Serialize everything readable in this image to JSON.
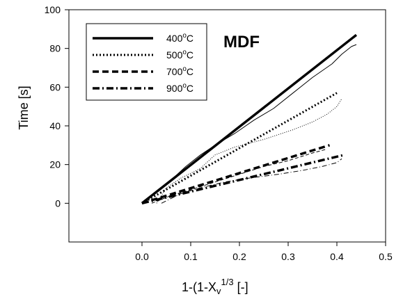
{
  "chart_data": {
    "type": "line",
    "annotation": "MDF",
    "xlabel": "1-(1-X",
    "xlabel_sub": "v",
    "xlabel_sup": "1/3",
    "xlabel_tail": " [-]",
    "ylabel": "Time [s]",
    "xlim": [
      -0.15,
      0.5
    ],
    "ylim": [
      -20,
      100
    ],
    "xticks": [
      0.0,
      0.1,
      0.2,
      0.3,
      0.4,
      0.5
    ],
    "xtick_labels": [
      "0.0",
      "0.1",
      "0.2",
      "0.3",
      "0.4",
      "0.5"
    ],
    "yticks": [
      0,
      20,
      40,
      60,
      80,
      100
    ],
    "ytick_labels": [
      "0",
      "20",
      "40",
      "60",
      "80",
      "100"
    ],
    "grid": false,
    "legend_position": "top-left",
    "series": [
      {
        "name": "400°C",
        "name_num": "400",
        "name_sup": "o",
        "name_unit": "C",
        "style": "solid",
        "fit": [
          [
            0.0,
            0.0
          ],
          [
            0.44,
            87
          ]
        ],
        "measured": [
          [
            0.0,
            0.0
          ],
          [
            0.03,
            6
          ],
          [
            0.06,
            12
          ],
          [
            0.09,
            19
          ],
          [
            0.12,
            25
          ],
          [
            0.15,
            30
          ],
          [
            0.19,
            36
          ],
          [
            0.23,
            43
          ],
          [
            0.27,
            49
          ],
          [
            0.31,
            57
          ],
          [
            0.35,
            65
          ],
          [
            0.39,
            72
          ],
          [
            0.41,
            77
          ],
          [
            0.43,
            81
          ],
          [
            0.44,
            82
          ]
        ]
      },
      {
        "name": "500°C",
        "name_num": "500",
        "name_sup": "o",
        "name_unit": "C",
        "style": "dotted",
        "fit": [
          [
            0.0,
            0.0
          ],
          [
            0.4,
            57
          ]
        ],
        "measured": [
          [
            0.03,
            0.0
          ],
          [
            0.05,
            8
          ],
          [
            0.08,
            13
          ],
          [
            0.12,
            18
          ],
          [
            0.15,
            25
          ],
          [
            0.19,
            29
          ],
          [
            0.25,
            33
          ],
          [
            0.31,
            38
          ],
          [
            0.35,
            42
          ],
          [
            0.38,
            46
          ],
          [
            0.4,
            50
          ],
          [
            0.41,
            54
          ]
        ]
      },
      {
        "name": "700°C",
        "name_num": "700",
        "name_sup": "o",
        "name_unit": "C",
        "style": "dashed",
        "fit": [
          [
            0.0,
            0.0
          ],
          [
            0.385,
            30
          ]
        ],
        "measured": [
          [
            0.02,
            0.0
          ],
          [
            0.06,
            4
          ],
          [
            0.1,
            7
          ],
          [
            0.15,
            11
          ],
          [
            0.2,
            15
          ],
          [
            0.25,
            19
          ],
          [
            0.3,
            22
          ],
          [
            0.35,
            26
          ],
          [
            0.38,
            28
          ]
        ]
      },
      {
        "name": "900°C",
        "name_num": "900",
        "name_sup": "o",
        "name_unit": "C",
        "style": "dashdot",
        "fit": [
          [
            0.0,
            0.0
          ],
          [
            0.415,
            25
          ]
        ],
        "measured": [
          [
            0.04,
            0.0
          ],
          [
            0.08,
            5
          ],
          [
            0.12,
            8
          ],
          [
            0.17,
            11
          ],
          [
            0.22,
            13
          ],
          [
            0.28,
            15
          ],
          [
            0.33,
            17
          ],
          [
            0.37,
            19
          ],
          [
            0.4,
            21
          ],
          [
            0.41,
            23
          ]
        ]
      }
    ]
  }
}
